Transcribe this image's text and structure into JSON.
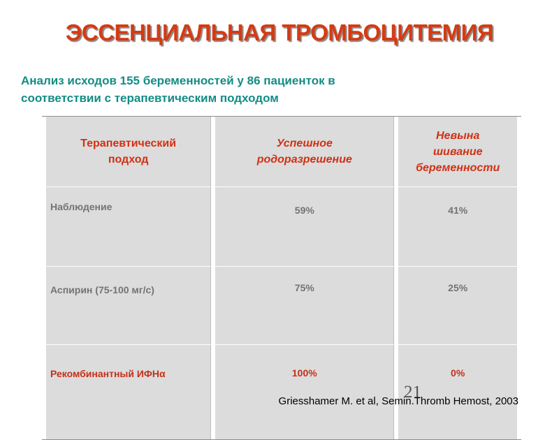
{
  "slide": {
    "title": "ЭССЕНЦИАЛЬНАЯ ТРОМБОЦИТЕМИЯ",
    "subtitle_line1": "Анализ исходов 155 беременностей у 86 пациенток в",
    "subtitle_line2": "соответствии с терапевтическим подходом",
    "page_number": "21",
    "citation": "Griesshamer M. et al, Semin.Thromb Hemost, 2003"
  },
  "table": {
    "headers": [
      {
        "line1": "Терапевтический",
        "line2": "подход",
        "line3": ""
      },
      {
        "line1": "Успешное",
        "line2": "родоразрешение",
        "line3": ""
      },
      {
        "line1": "Невына",
        "line2": "шивание",
        "line3": "беременности"
      }
    ],
    "rows": [
      {
        "approach": "Наблюдение",
        "success": "59%",
        "miscarriage": "41%"
      },
      {
        "approach": "Аспирин (75-100 мг/с)",
        "success": "75%",
        "miscarriage": "25%"
      },
      {
        "approach": "Рекомбинантный ИФНα",
        "success": "100%",
        "miscarriage": "0%"
      }
    ]
  },
  "colors": {
    "title": "#d63a12",
    "subtitle": "#138c84",
    "header_text": "#d03114",
    "cell_text": "#737373",
    "highlight_row": "#c4301a",
    "cell_background": "#dcdcdc"
  }
}
